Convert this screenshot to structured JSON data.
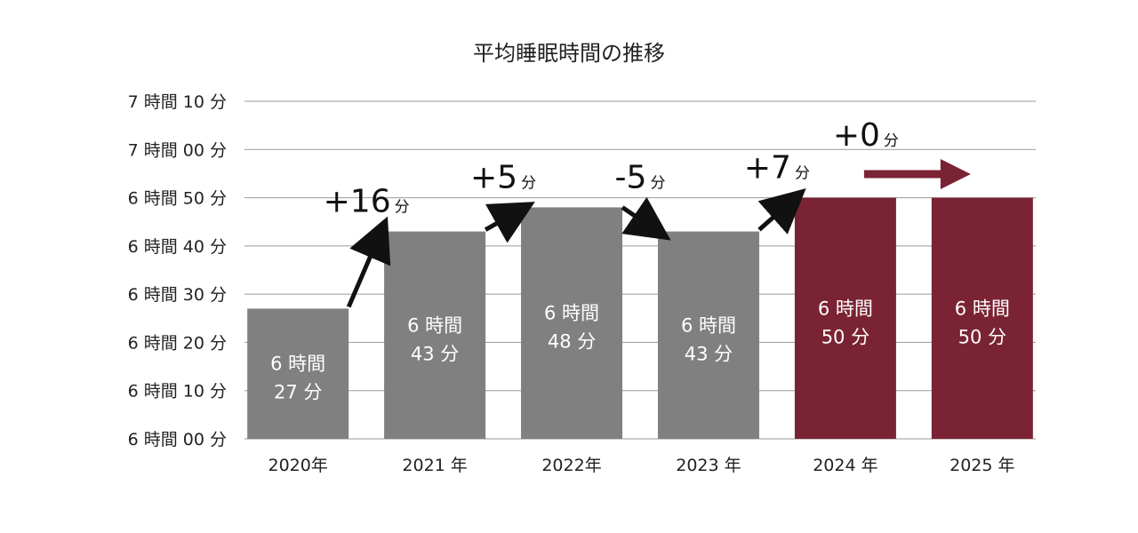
{
  "chart_data": {
    "type": "bar",
    "title": "平均睡眠時間の推移",
    "categories": [
      "2020年",
      "2021 年",
      "2022年",
      "2023 年",
      "2024 年",
      "2025 年"
    ],
    "values": [
      387,
      403,
      408,
      403,
      410,
      410
    ],
    "value_unit": "minutes",
    "ylim": [
      360,
      430
    ],
    "y_ticks": [
      {
        "value": 430,
        "label": "7 時間 10 分"
      },
      {
        "value": 420,
        "label": "7 時間 00 分"
      },
      {
        "value": 410,
        "label": "6 時間 50 分"
      },
      {
        "value": 400,
        "label": "6 時間 40 分"
      },
      {
        "value": 390,
        "label": "6 時間 30 分"
      },
      {
        "value": 380,
        "label": "6 時間 20 分"
      },
      {
        "value": 370,
        "label": "6 時間 10 分"
      },
      {
        "value": 360,
        "label": "6 時間 00 分"
      }
    ],
    "bar_labels": [
      [
        "6 時間",
        "27 分"
      ],
      [
        "6 時間",
        "43 分"
      ],
      [
        "6 時間",
        "48 分"
      ],
      [
        "6 時間",
        "43 分"
      ],
      [
        "6 時間",
        "50 分"
      ],
      [
        "6 時間",
        "50 分"
      ]
    ],
    "bar_colors": [
      "#808080",
      "#808080",
      "#808080",
      "#808080",
      "#7a2334",
      "#7a2334"
    ],
    "changes": [
      {
        "value": "+16",
        "unit": "分",
        "color": "#111111"
      },
      {
        "value": "+5",
        "unit": "分",
        "color": "#111111"
      },
      {
        "value": "-5",
        "unit": "分",
        "color": "#111111"
      },
      {
        "value": "+7",
        "unit": "分",
        "color": "#111111"
      },
      {
        "value": "+0",
        "unit": "分",
        "color": "#7a2334"
      }
    ],
    "grid": true,
    "legend": "none"
  }
}
